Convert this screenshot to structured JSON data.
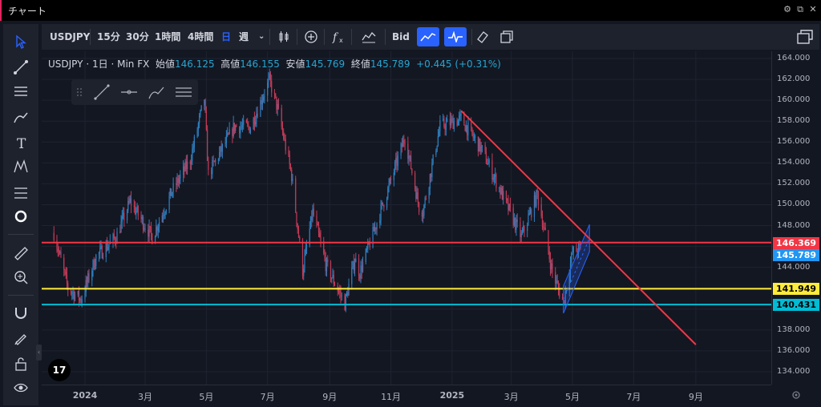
{
  "window": {
    "title": "チャート"
  },
  "toolbar": {
    "symbol": "USDJPY",
    "intervals": [
      "15分",
      "30分",
      "1時間",
      "4時間"
    ],
    "interval_active": "日",
    "interval_week": "週",
    "bid": "Bid"
  },
  "legend": {
    "symbol": "USDJPY",
    "sep1": "·",
    "interval": "1日",
    "sep2": "·",
    "source": "Min FX",
    "open_label": "始値",
    "open": "146.125",
    "high_label": "高値",
    "high": "146.155",
    "low_label": "安値",
    "low": "145.769",
    "close_label": "終値",
    "close": "145.789",
    "change": "+0.445 (+0.31%)"
  },
  "colors": {
    "up": "#26a69a",
    "down": "#ef5350",
    "candle_up": "#2e7fbf",
    "candle_down": "#c23b57",
    "red_line": "#f23645",
    "yellow_line": "#ffeb3b",
    "cyan_line": "#00bcd4",
    "channel": "#2962ff"
  },
  "chart_data": {
    "type": "candlestick",
    "ylim": [
      134,
      164
    ],
    "y_ticks": [
      "164.000",
      "162.000",
      "160.000",
      "158.000",
      "156.000",
      "154.000",
      "152.000",
      "150.000",
      "148.000",
      "146.000",
      "144.000",
      "142.000",
      "140.000",
      "138.000",
      "136.000",
      "134.000"
    ],
    "x_ticks": [
      "2024",
      "3月",
      "5月",
      "7月",
      "9月",
      "11月",
      "2025",
      "3月",
      "5月",
      "7月",
      "9月"
    ],
    "price_series": [
      [
        "2023-12-01",
        147.3
      ],
      [
        "2023-12-15",
        142.0
      ],
      [
        "2023-12-28",
        140.9
      ],
      [
        "2024-01-12",
        145.0
      ],
      [
        "2024-02-01",
        146.9
      ],
      [
        "2024-02-15",
        150.3
      ],
      [
        "2024-03-08",
        146.9
      ],
      [
        "2024-03-28",
        151.3
      ],
      [
        "2024-04-15",
        154.3
      ],
      [
        "2024-04-29",
        160.2
      ],
      [
        "2024-05-03",
        152.9
      ],
      [
        "2024-05-29",
        157.5
      ],
      [
        "2024-06-14",
        157.4
      ],
      [
        "2024-06-28",
        160.8
      ],
      [
        "2024-07-03",
        161.9
      ],
      [
        "2024-07-11",
        159.2
      ],
      [
        "2024-07-25",
        152.8
      ],
      [
        "2024-08-05",
        143.7
      ],
      [
        "2024-08-15",
        149.3
      ],
      [
        "2024-08-28",
        144.3
      ],
      [
        "2024-09-16",
        140.5
      ],
      [
        "2024-09-26",
        144.8
      ],
      [
        "2024-10-01",
        143.5
      ],
      [
        "2024-10-31",
        152.0
      ],
      [
        "2024-11-15",
        156.5
      ],
      [
        "2024-11-29",
        149.8
      ],
      [
        "2024-12-03",
        149.4
      ],
      [
        "2024-12-20",
        157.5
      ],
      [
        "2025-01-10",
        158.2
      ],
      [
        "2025-01-31",
        155.2
      ],
      [
        "2025-02-15",
        152.0
      ],
      [
        "2025-03-11",
        146.9
      ],
      [
        "2025-03-27",
        151.0
      ],
      [
        "2025-04-11",
        143.5
      ],
      [
        "2025-04-22",
        140.6
      ],
      [
        "2025-05-01",
        145.4
      ],
      [
        "2025-05-09",
        145.8
      ]
    ],
    "horizontal_lines": [
      {
        "price": 146.369,
        "color": "#f23645",
        "label": "146.369"
      },
      {
        "price": 141.949,
        "color": "#ffeb3b",
        "label": "141.949"
      },
      {
        "price": 140.431,
        "color": "#00bcd4",
        "label": "140.431"
      }
    ],
    "last_price": {
      "price": 145.789,
      "label": "145.789"
    },
    "trendline": {
      "from": [
        "2025-01-10",
        159.0
      ],
      "to": [
        "2025-09-01",
        136.6
      ]
    },
    "channel": {
      "lower_from": [
        "2025-04-22",
        139.6
      ],
      "lower_to": [
        "2025-05-18",
        145.5
      ],
      "upper_from": [
        "2025-04-22",
        142.2
      ],
      "upper_to": [
        "2025-05-18",
        148.1
      ]
    }
  }
}
